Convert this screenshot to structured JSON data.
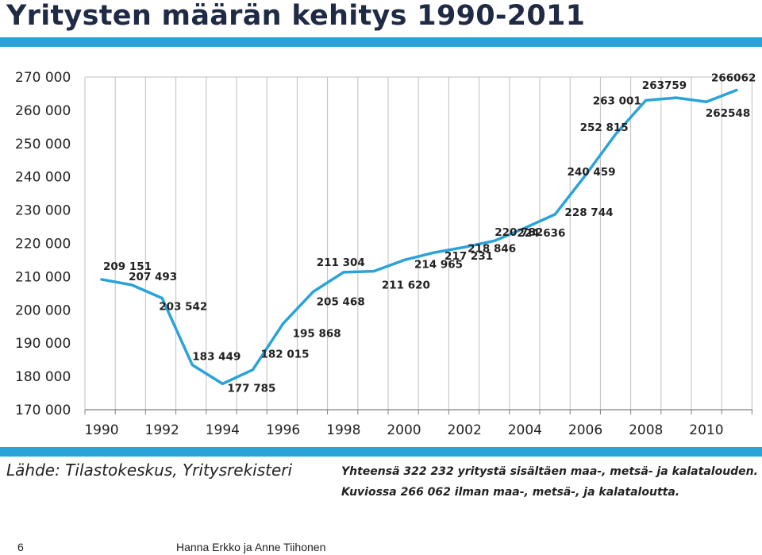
{
  "title": "Yritysten määrän kehitys 1990-2011",
  "source": "Lähde: Tilastokeskus, Yritysrekisteri",
  "note_line1": "Yhteensä 322 232 yritystä sisältäen maa-, metsä- ja kalatalouden.",
  "note_line2": "Kuviossa 266 062 ilman maa-, metsä-, ja kalataloutta.",
  "footer": {
    "page_number": "6",
    "author": "Hanna Erkko ja Anne Tiihonen"
  },
  "colors": {
    "line": "#2aa3d8",
    "accent_bar": "#2aa3d8",
    "title": "#1f2a44"
  },
  "chart_data": {
    "type": "line",
    "x": [
      1990,
      1991,
      1992,
      1993,
      1994,
      1995,
      1996,
      1997,
      1998,
      1999,
      2000,
      2001,
      2002,
      2003,
      2004,
      2005,
      2006,
      2007,
      2008,
      2009,
      2010,
      2011
    ],
    "values": [
      209151,
      207493,
      203542,
      183449,
      177785,
      182015,
      195868,
      205468,
      211304,
      211620,
      214965,
      217231,
      218846,
      220782,
      224636,
      228744,
      240459,
      252815,
      263001,
      263759,
      262548,
      266062
    ],
    "point_labels": [
      "209 151",
      "207 493",
      "203 542",
      "183 449",
      "177 785",
      "182 015",
      "195 868",
      "205 468",
      "211 304",
      "211 620",
      "214 965",
      "217 231",
      "218 846",
      "220 782",
      "224 636",
      "228 744",
      "240 459",
      "252 815",
      "263 001",
      "263759",
      "262548",
      "266062"
    ],
    "ylim": [
      170000,
      270000
    ],
    "y_ticks": [
      170000,
      180000,
      190000,
      200000,
      210000,
      220000,
      230000,
      240000,
      250000,
      260000,
      270000
    ],
    "y_tick_labels": [
      "170 000",
      "180 000",
      "190 000",
      "200 000",
      "210 000",
      "220 000",
      "230 000",
      "240 000",
      "250 000",
      "260 000",
      "270 000"
    ],
    "x_tick_labels": [
      "1990",
      "1992",
      "1994",
      "1996",
      "1998",
      "2000",
      "2002",
      "2004",
      "2006",
      "2008",
      "2010"
    ],
    "grid": "vertical",
    "xlabel": "",
    "ylabel": ""
  }
}
